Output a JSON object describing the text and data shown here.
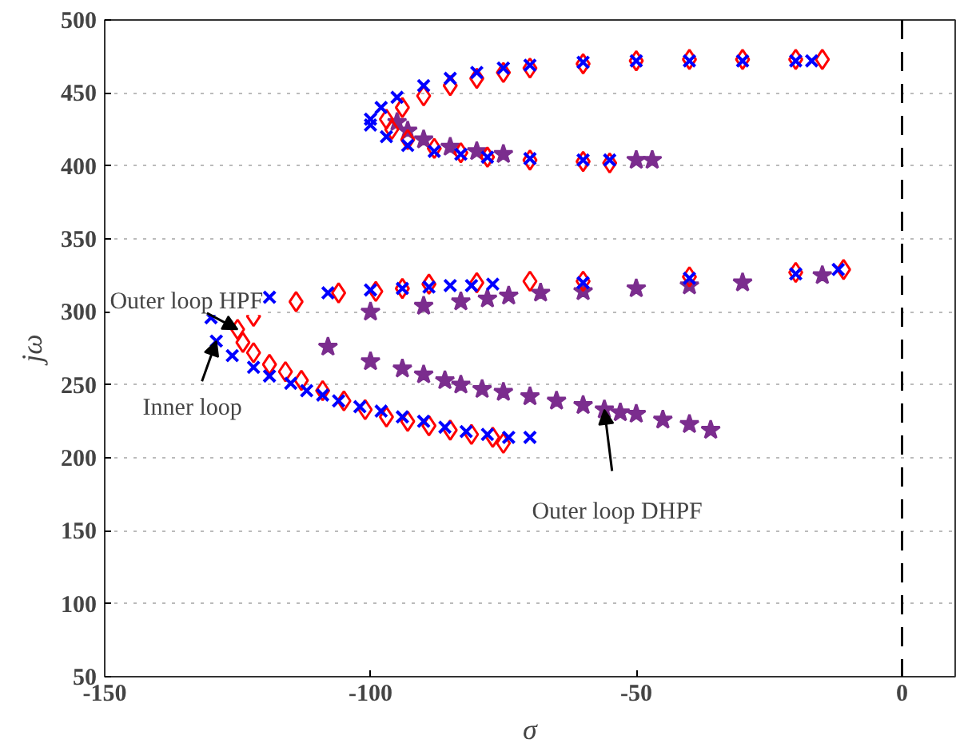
{
  "chart_data": {
    "type": "scatter",
    "xlabel": "σ",
    "ylabel": "jω",
    "xlim": [
      -150,
      10
    ],
    "ylim": [
      50,
      500
    ],
    "xticks": [
      -150,
      -100,
      -50,
      0
    ],
    "yticks": [
      50,
      100,
      150,
      200,
      250,
      300,
      350,
      400,
      450,
      500
    ],
    "grid": "y",
    "ref_lines": [
      {
        "axis": "x",
        "value": 0,
        "color": "#000000",
        "line_style": "dashed"
      }
    ],
    "annotations": [
      {
        "text": "Outer loop HPF",
        "x": -125,
        "y": 288
      },
      {
        "text": "Inner loop",
        "x": -129,
        "y": 280
      },
      {
        "text": "Outer loop DHPF",
        "x": -56,
        "y": 233
      }
    ],
    "series": [
      {
        "color": "#7b2d8e",
        "marker": "star",
        "x": [
          -95,
          -93,
          -90,
          -85,
          -80,
          -75,
          -70,
          -60,
          -50,
          -47,
          -108,
          -100,
          -94,
          -90,
          -86,
          -83,
          -79,
          -75,
          -70,
          -65,
          -60,
          -56,
          -53,
          -50,
          -45,
          -40,
          -36,
          -100,
          -90,
          -83,
          -78,
          -74,
          -68,
          -60,
          -50,
          -40,
          -30,
          -15
        ],
        "values": [
          430,
          424,
          418,
          413,
          410,
          408,
          null,
          null,
          404,
          404,
          276,
          266,
          261,
          257,
          253,
          250,
          247,
          245,
          242,
          239,
          236,
          233,
          231,
          230,
          226,
          223,
          219,
          300,
          304,
          307,
          309,
          311,
          313,
          314,
          316,
          318,
          320,
          325
        ]
      },
      {
        "color": "#ff0000",
        "marker": "diamond",
        "x": [
          -97,
          -94,
          -90,
          -85,
          -80,
          -75,
          -70,
          -60,
          -50,
          -40,
          -30,
          -20,
          -15,
          -96,
          -93,
          -88,
          -83,
          -78,
          -70,
          -60,
          -55,
          -125,
          -122,
          -114,
          -106,
          -99,
          -94,
          -89,
          -80,
          -70,
          -60,
          -40,
          -20,
          -11,
          -124,
          -122,
          -119,
          -116,
          -113,
          -109,
          -105,
          -101,
          -97,
          -93,
          -89,
          -85,
          -81,
          -77,
          -75
        ],
        "values": [
          432,
          440,
          448,
          455,
          460,
          464,
          467,
          470,
          472,
          473,
          473,
          473,
          473,
          425,
          418,
          412,
          409,
          406,
          404,
          403,
          402,
          288,
          297,
          307,
          313,
          314,
          316,
          319,
          320,
          321,
          321,
          324,
          327,
          329,
          279,
          272,
          264,
          259,
          253,
          246,
          239,
          233,
          228,
          225,
          222,
          219,
          216,
          214,
          210
        ]
      },
      {
        "color": "#0000ff",
        "marker": "cross",
        "x": [
          -100,
          -98,
          -95,
          -90,
          -85,
          -80,
          -75,
          -70,
          -60,
          -50,
          -40,
          -30,
          -20,
          -17,
          -100,
          -97,
          -93,
          -88,
          -83,
          -78,
          -70,
          -60,
          -55,
          -130,
          -129,
          -119,
          -108,
          -100,
          -94,
          -89,
          -85,
          -81,
          -77,
          -60,
          -40,
          -20,
          -12,
          -126,
          -122,
          -119,
          -115,
          -112,
          -109,
          -106,
          -102,
          -98,
          -94,
          -90,
          -86,
          -82,
          -78,
          -74,
          -70
        ],
        "values": [
          432,
          440,
          447,
          455,
          460,
          464,
          467,
          469,
          471,
          472,
          472,
          472,
          472,
          472,
          428,
          420,
          414,
          410,
          408,
          406,
          405,
          404,
          404,
          296,
          280,
          310,
          313,
          315,
          316,
          317,
          318,
          318,
          319,
          320,
          323,
          326,
          329,
          270,
          262,
          256,
          251,
          246,
          243,
          239,
          235,
          232,
          228,
          225,
          221,
          218,
          216,
          214,
          214
        ]
      }
    ]
  }
}
